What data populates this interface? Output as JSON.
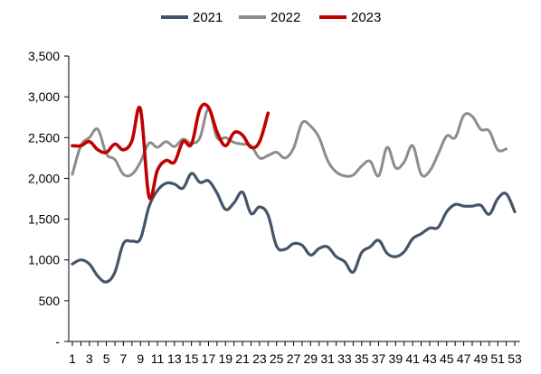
{
  "chart_data": {
    "type": "line",
    "title": "",
    "xlabel": "",
    "ylabel": "",
    "x_tick_labels": [
      "1",
      "3",
      "5",
      "7",
      "9",
      "11",
      "13",
      "15",
      "17",
      "19",
      "21",
      "23",
      "25",
      "27",
      "29",
      "31",
      "33",
      "35",
      "37",
      "39",
      "41",
      "43",
      "45",
      "47",
      "49",
      "51",
      "53"
    ],
    "y_tick_labels": [
      "-",
      "500",
      "1,000",
      "1,500",
      "2,000",
      "2,500",
      "3,000",
      "3,500"
    ],
    "ylim": [
      0,
      3500
    ],
    "xlim": [
      1,
      53
    ],
    "grid": false,
    "legend_position": "top",
    "series": [
      {
        "name": "2021",
        "color": "#44546a",
        "x": [
          1,
          2,
          3,
          4,
          5,
          6,
          7,
          8,
          9,
          10,
          11,
          12,
          13,
          14,
          15,
          16,
          17,
          18,
          19,
          20,
          21,
          22,
          23,
          24,
          25,
          26,
          27,
          28,
          29,
          30,
          31,
          32,
          33,
          34,
          35,
          36,
          37,
          38,
          39,
          40,
          41,
          42,
          43,
          44,
          45,
          46,
          47,
          48,
          49,
          50,
          51,
          52,
          53
        ],
        "y": [
          950,
          1000,
          950,
          800,
          730,
          850,
          1200,
          1230,
          1260,
          1650,
          1850,
          1940,
          1930,
          1880,
          2060,
          1950,
          1970,
          1820,
          1620,
          1700,
          1830,
          1570,
          1650,
          1550,
          1170,
          1130,
          1200,
          1180,
          1060,
          1140,
          1160,
          1040,
          980,
          850,
          1090,
          1160,
          1240,
          1080,
          1040,
          1100,
          1260,
          1320,
          1390,
          1400,
          1590,
          1680,
          1660,
          1660,
          1670,
          1560,
          1750,
          1810,
          1590
        ]
      },
      {
        "name": "2022",
        "color": "#8c8c8c",
        "x": [
          1,
          2,
          3,
          4,
          5,
          6,
          7,
          8,
          9,
          10,
          11,
          12,
          13,
          14,
          15,
          16,
          17,
          18,
          19,
          20,
          21,
          22,
          23,
          24,
          25,
          26,
          27,
          28,
          29,
          30,
          31,
          32,
          33,
          34,
          35,
          36,
          37,
          38,
          39,
          40,
          41,
          42,
          43,
          44,
          45,
          46,
          47,
          48,
          49,
          50,
          51,
          52
        ],
        "y": [
          2050,
          2400,
          2500,
          2600,
          2300,
          2230,
          2050,
          2050,
          2200,
          2430,
          2380,
          2450,
          2390,
          2480,
          2430,
          2500,
          2850,
          2500,
          2500,
          2440,
          2420,
          2400,
          2250,
          2280,
          2320,
          2250,
          2370,
          2680,
          2640,
          2500,
          2220,
          2080,
          2030,
          2040,
          2150,
          2210,
          2030,
          2380,
          2130,
          2200,
          2400,
          2050,
          2090,
          2300,
          2520,
          2500,
          2770,
          2760,
          2600,
          2580,
          2350,
          2360
        ]
      },
      {
        "name": "2023",
        "color": "#c00000",
        "x": [
          1,
          2,
          3,
          4,
          5,
          6,
          7,
          8,
          9,
          10,
          11,
          12,
          13,
          14,
          15,
          16,
          17,
          18,
          19,
          20,
          21,
          22,
          23,
          24
        ],
        "y": [
          2400,
          2400,
          2450,
          2350,
          2320,
          2420,
          2350,
          2460,
          2850,
          1780,
          2100,
          2220,
          2200,
          2450,
          2420,
          2850,
          2870,
          2570,
          2400,
          2560,
          2530,
          2380,
          2450,
          2800
        ]
      }
    ]
  }
}
